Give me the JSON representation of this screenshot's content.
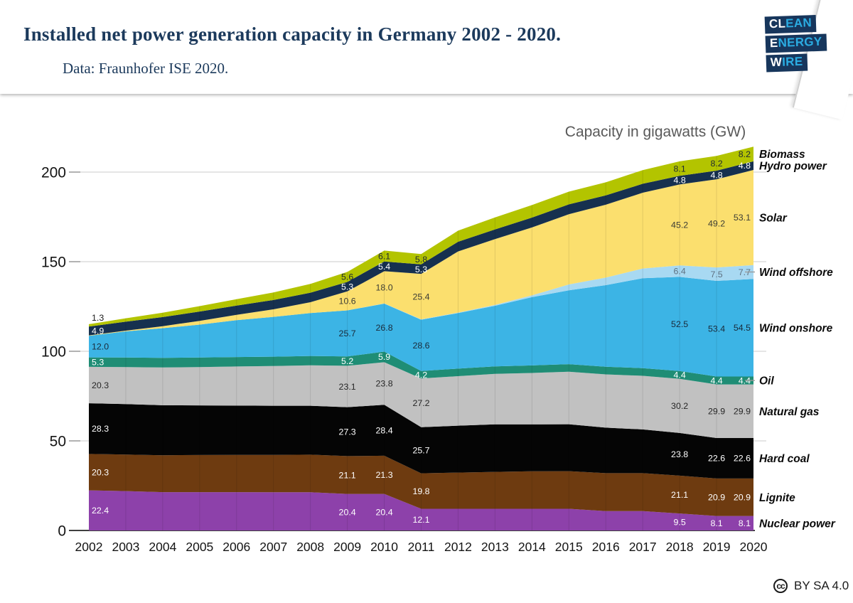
{
  "header": {
    "title": "Installed net power generation capacity in Germany 2002 - 2020.",
    "subtitle": "Data: Fraunhofer ISE 2020.",
    "logo": {
      "rows": [
        {
          "white": "CL",
          "cyan": "EAN"
        },
        {
          "white": "E",
          "cyan": "NERGY"
        },
        {
          "white": "W",
          "cyan": "IRE"
        }
      ]
    }
  },
  "footer": {
    "cc_icon": "cc",
    "license": "BY SA 4.0"
  },
  "chart_data": {
    "type": "area",
    "stacked": true,
    "title": "Capacity in gigawatts (GW)",
    "xlabel": "",
    "ylabel": "",
    "x": [
      2002,
      2003,
      2004,
      2005,
      2006,
      2007,
      2008,
      2009,
      2010,
      2011,
      2012,
      2013,
      2014,
      2015,
      2016,
      2017,
      2018,
      2019,
      2020
    ],
    "y_ticks": [
      0,
      50,
      100,
      150,
      200
    ],
    "ylim": [
      0,
      220
    ],
    "grid": true,
    "legend_position": "right-of-plot",
    "series": [
      {
        "key": "nuclear",
        "name": "Nuclear power",
        "color": "#8d41aa",
        "label_color": "#ffffff",
        "values": [
          22.4,
          22.0,
          21.4,
          21.4,
          21.4,
          21.3,
          21.3,
          20.4,
          20.4,
          12.1,
          12.1,
          12.1,
          12.1,
          12.1,
          10.8,
          10.8,
          9.5,
          8.1,
          8.1
        ],
        "labels": {
          "2002": "22.4",
          "2009": "20.4",
          "2010": "20.4",
          "2011": "12.1",
          "2018": "9.5",
          "2019": "8.1",
          "2020": "8.1"
        }
      },
      {
        "key": "lignite",
        "name": "Lignite",
        "color": "#6e3b10",
        "label_color": "#ffffff",
        "values": [
          20.3,
          20.4,
          20.6,
          20.7,
          20.8,
          20.9,
          21.0,
          21.1,
          21.3,
          19.8,
          20.2,
          20.6,
          20.9,
          21.0,
          21.2,
          21.2,
          21.1,
          20.9,
          20.9
        ],
        "labels": {
          "2002": "20.3",
          "2009": "21.1",
          "2010": "21.3",
          "2011": "19.8",
          "2018": "21.1",
          "2019": "20.9",
          "2020": "20.9"
        }
      },
      {
        "key": "hard_coal",
        "name": "Hard coal",
        "color": "#050505",
        "label_color": "#ffffff",
        "values": [
          28.3,
          28.1,
          27.9,
          27.7,
          27.5,
          27.4,
          27.3,
          27.3,
          28.4,
          25.7,
          26.2,
          26.5,
          26.2,
          26.2,
          25.4,
          24.4,
          23.8,
          22.6,
          22.6
        ],
        "labels": {
          "2002": "28.3",
          "2009": "27.3",
          "2010": "28.4",
          "2011": "25.7",
          "2018": "23.8",
          "2019": "22.6",
          "2020": "22.6"
        }
      },
      {
        "key": "natural_gas",
        "name": "Natural gas",
        "color": "#c1c1c1",
        "label_color": "#262626",
        "values": [
          20.3,
          20.7,
          21.1,
          21.4,
          21.8,
          22.2,
          22.6,
          23.1,
          23.8,
          27.2,
          27.6,
          28.2,
          28.7,
          29.3,
          29.7,
          29.9,
          30.2,
          29.9,
          29.9
        ],
        "labels": {
          "2002": "20.3",
          "2009": "23.1",
          "2010": "23.8",
          "2011": "27.2",
          "2018": "30.2",
          "2019": "29.9",
          "2020": "29.9"
        }
      },
      {
        "key": "oil",
        "name": "Oil",
        "color": "#1f8d75",
        "label_color": "#ffffff",
        "values": [
          5.3,
          5.3,
          5.3,
          5.3,
          5.3,
          5.2,
          5.2,
          5.2,
          5.9,
          4.2,
          4.2,
          4.2,
          4.2,
          4.2,
          4.3,
          4.3,
          4.4,
          4.4,
          4.4
        ],
        "labels": {
          "2002": "5.3",
          "2009": "5.2",
          "2010": "5.9",
          "2011": "4.2",
          "2018": "4.4",
          "2019": "4.4",
          "2020": "4.4"
        }
      },
      {
        "key": "wind_onshore",
        "name": "Wind onshore",
        "color": "#3cb4e5",
        "label_color": "#1a2a3a",
        "values": [
          12.0,
          14.6,
          16.6,
          18.4,
          20.6,
          22.2,
          23.9,
          25.7,
          26.8,
          28.6,
          31.0,
          33.8,
          38.1,
          41.2,
          45.5,
          50.2,
          52.5,
          53.4,
          54.5
        ],
        "labels": {
          "2002": "12.0",
          "2009": "25.7",
          "2010": "26.8",
          "2011": "28.6",
          "2018": "52.5",
          "2019": "53.4",
          "2020": "54.5"
        }
      },
      {
        "key": "wind_offshore",
        "name": "Wind offshore",
        "color": "#a8d9f2",
        "label_color": "#5f7181",
        "values": [
          0.0,
          0.0,
          0.0,
          0.0,
          0.0,
          0.0,
          0.0,
          0.0,
          0.1,
          0.2,
          0.3,
          0.5,
          1.0,
          3.3,
          4.2,
          5.4,
          6.4,
          7.5,
          7.7
        ],
        "labels": {
          "2018": "6.4",
          "2019": "7.5",
          "2020": "7.7"
        }
      },
      {
        "key": "solar",
        "name": "Solar",
        "color": "#fbdf6e",
        "label_color": "#3d3d35",
        "values": [
          0.3,
          0.4,
          1.1,
          2.1,
          2.9,
          4.2,
          6.1,
          10.6,
          18.0,
          25.4,
          34.1,
          36.7,
          37.9,
          39.2,
          40.7,
          42.3,
          45.2,
          49.2,
          53.1
        ],
        "labels": {
          "2009": "10.6",
          "2010": "18.0",
          "2011": "25.4",
          "2018": "45.2",
          "2019": "49.2",
          "2020": "53.1"
        }
      },
      {
        "key": "hydro",
        "name": "Hydro power",
        "color": "#16304f",
        "label_color": "#ffffff",
        "values": [
          4.9,
          5.0,
          5.1,
          5.2,
          5.2,
          5.2,
          5.3,
          5.3,
          5.4,
          5.3,
          5.4,
          5.4,
          5.5,
          5.5,
          5.2,
          5.0,
          4.8,
          4.8,
          4.8
        ],
        "labels": {
          "2002": "4.9",
          "2009": "5.3",
          "2010": "5.4",
          "2011": "5.3",
          "2018": "4.8",
          "2019": "4.8",
          "2020": "4.8"
        }
      },
      {
        "key": "biomass",
        "name": "Biomass",
        "color": "#b3c400",
        "label_color": "#1e2833",
        "values": [
          1.3,
          1.9,
          2.4,
          3.0,
          3.6,
          4.2,
          4.9,
          5.6,
          6.1,
          5.8,
          6.2,
          6.7,
          7.0,
          7.1,
          7.3,
          7.6,
          8.1,
          8.2,
          8.2
        ],
        "labels": {
          "2002": "1.3",
          "2009": "5.6",
          "2010": "6.1",
          "2011": "5.8",
          "2018": "8.1",
          "2019": "8.2",
          "2020": "8.2"
        }
      }
    ]
  }
}
